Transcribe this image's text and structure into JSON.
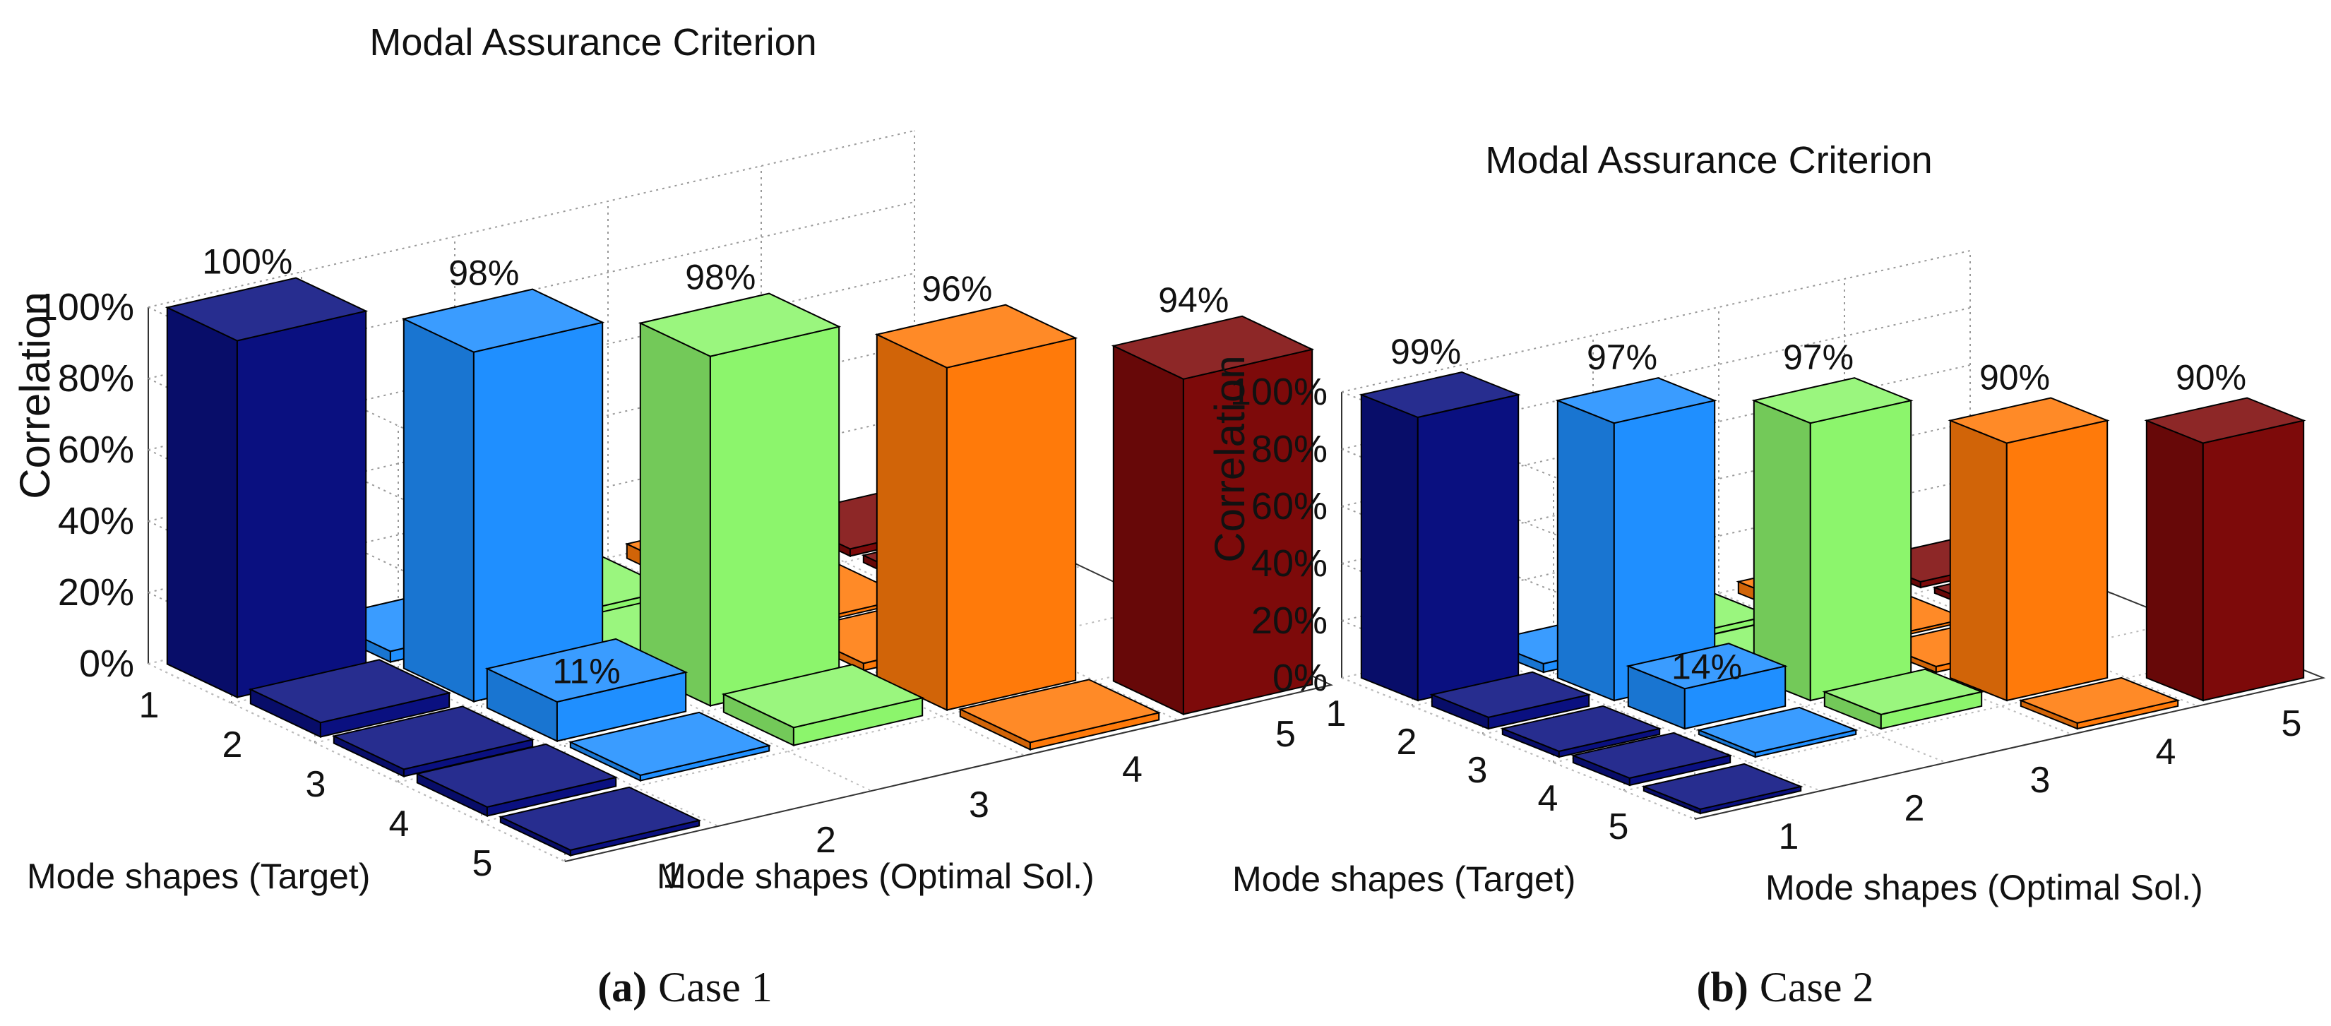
{
  "colors": {
    "mode1": "#0a1080",
    "mode2": "#1f8fff",
    "mode3": "#8cf56c",
    "mode4": "#ff7a0a",
    "mode5": "#7d0a0a"
  },
  "chart_data": [
    {
      "type": "bar3d",
      "panel": "a",
      "title": "Modal Assurance Criterion",
      "zlabel": "Correlation",
      "xlabel": "Mode shapes (Target)",
      "ylabel": "Mode shapes (Optimal Sol.)",
      "z_ticks": [
        "0%",
        "20%",
        "40%",
        "60%",
        "80%",
        "100%"
      ],
      "zlim": [
        0,
        100
      ],
      "x_categories": [
        "1",
        "2",
        "3",
        "4",
        "5"
      ],
      "y_categories": [
        "1",
        "2",
        "3",
        "4",
        "5"
      ],
      "diagonal_values": [
        100,
        98,
        98,
        96,
        94
      ],
      "diagonal_labels": [
        "100%",
        "98%",
        "98%",
        "96%",
        "94%"
      ],
      "highlight": {
        "target": 3,
        "optimal": 2,
        "value": 11,
        "label": "11%"
      },
      "caption_letter": "(a)",
      "caption_text": "Case 1"
    },
    {
      "type": "bar3d",
      "panel": "b",
      "title": "Modal Assurance Criterion",
      "zlabel": "Correlation",
      "xlabel": "Mode shapes (Target)",
      "ylabel": "Mode shapes (Optimal Sol.)",
      "z_ticks": [
        "0%",
        "20%",
        "40%",
        "60%",
        "80%",
        "100%"
      ],
      "zlim": [
        0,
        100
      ],
      "x_categories": [
        "1",
        "2",
        "3",
        "4",
        "5"
      ],
      "y_categories": [
        "1",
        "2",
        "3",
        "4",
        "5"
      ],
      "diagonal_values": [
        99,
        97,
        97,
        90,
        90
      ],
      "diagonal_labels": [
        "99%",
        "97%",
        "97%",
        "90%",
        "90%"
      ],
      "highlight": {
        "target": 3,
        "optimal": 2,
        "value": 14,
        "label": "14%"
      },
      "caption_letter": "(b)",
      "caption_text": "Case 2"
    }
  ]
}
